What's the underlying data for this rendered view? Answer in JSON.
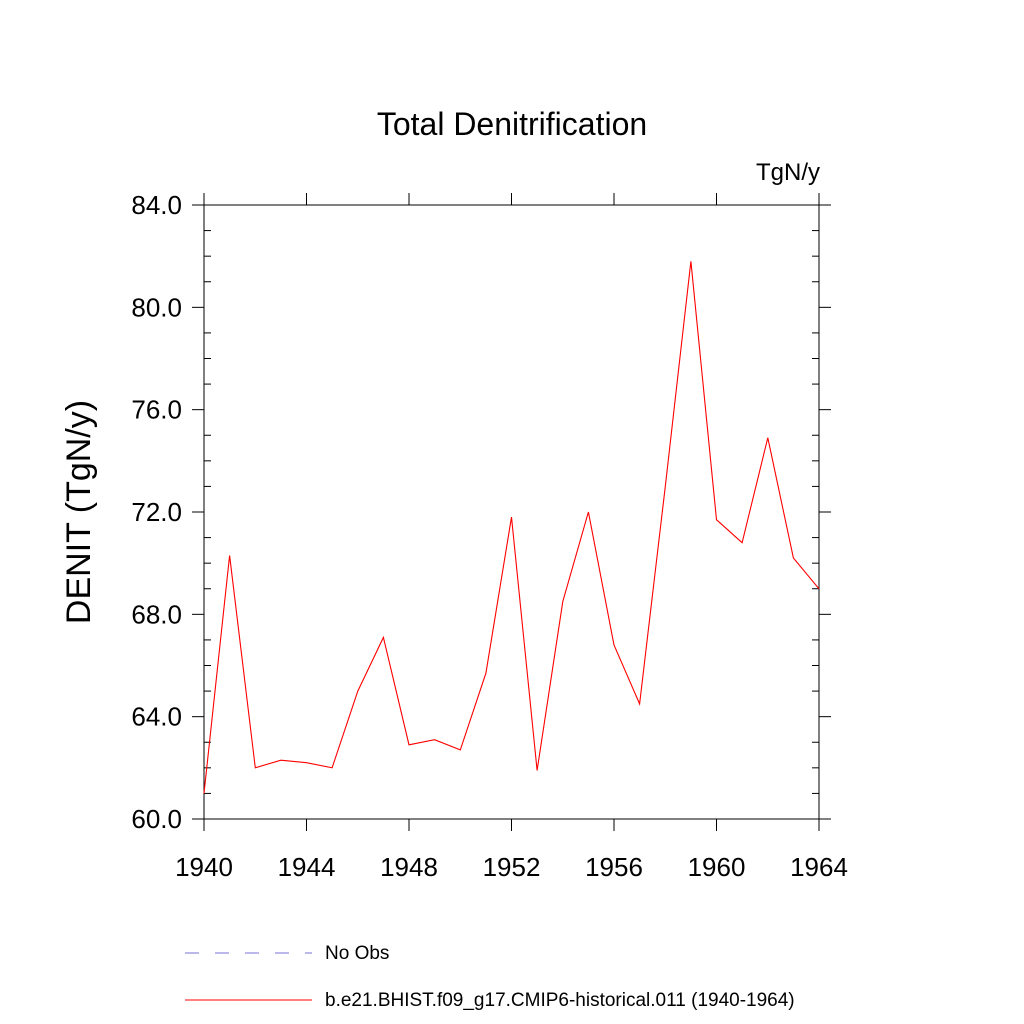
{
  "chart_data": {
    "type": "line",
    "title": "Total Denitrification",
    "units_label": "TgN/y",
    "ylabel": "DENIT  (TgN/y)",
    "xlabel": "",
    "xlim": [
      1940,
      1964
    ],
    "ylim": [
      60,
      84
    ],
    "x_ticks": [
      1940,
      1944,
      1948,
      1952,
      1956,
      1960,
      1964
    ],
    "x_tick_labels": [
      "1940",
      "1944",
      "1948",
      "1952",
      "1956",
      "1960",
      "1964"
    ],
    "y_ticks": [
      60,
      64,
      68,
      72,
      76,
      80,
      84
    ],
    "y_tick_labels": [
      "60.0",
      "64.0",
      "68.0",
      "72.0",
      "76.0",
      "80.0",
      "84.0"
    ],
    "grid": false,
    "legend_position": "bottom",
    "series": [
      {
        "name": "b.e21.BHIST.f09_g17.CMIP6-historical.011 (1940-1964)",
        "color": "#ff0000",
        "style": "solid",
        "x": [
          1940,
          1941,
          1942,
          1943,
          1944,
          1945,
          1946,
          1947,
          1948,
          1949,
          1950,
          1951,
          1952,
          1953,
          1954,
          1955,
          1956,
          1957,
          1958,
          1959,
          1960,
          1961,
          1962,
          1963,
          1964
        ],
        "values": [
          61.0,
          70.3,
          62.0,
          62.3,
          62.2,
          62.0,
          65.0,
          67.1,
          62.9,
          63.1,
          62.7,
          65.7,
          71.8,
          61.9,
          68.5,
          72.0,
          66.8,
          64.5,
          73.0,
          81.8,
          71.7,
          70.8,
          74.9,
          70.2,
          69.0
        ]
      }
    ],
    "legend": [
      {
        "label": "No Obs",
        "color": "#7a70d8",
        "style": "dashed"
      },
      {
        "label": "b.e21.BHIST.f09_g17.CMIP6-historical.011 (1940-1964)",
        "color": "#ff0000",
        "style": "solid"
      }
    ]
  }
}
